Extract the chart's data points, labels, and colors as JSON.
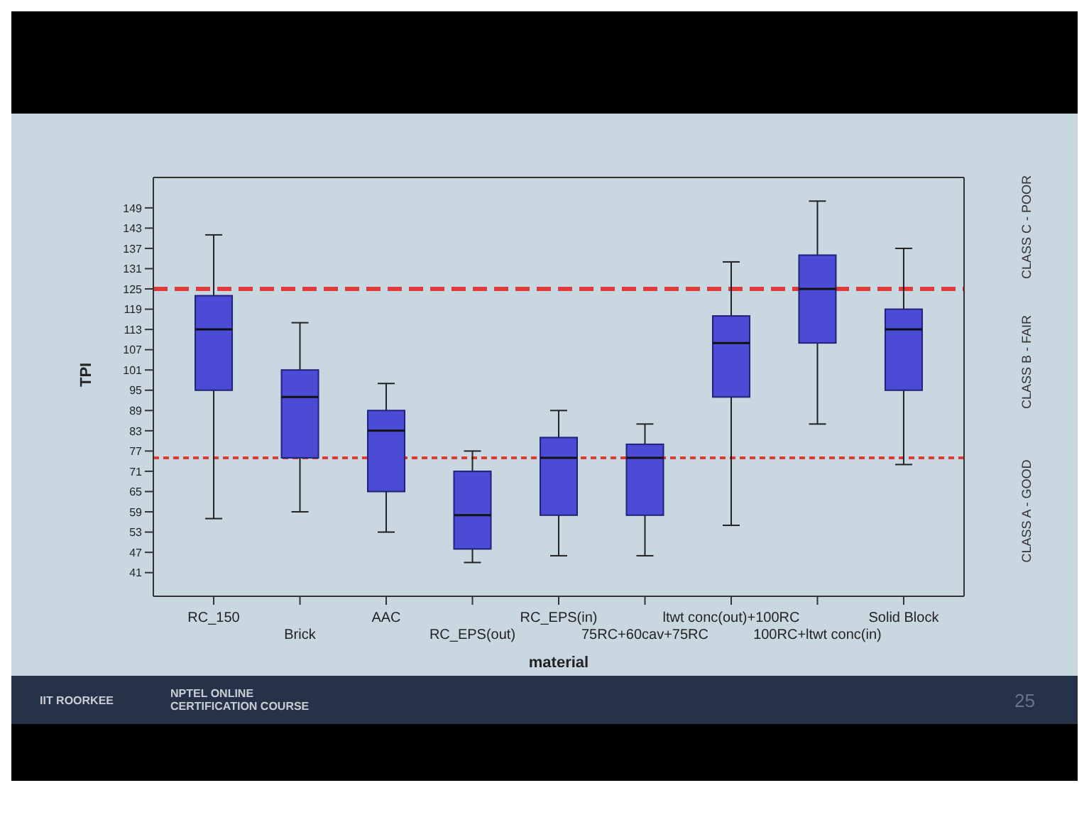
{
  "chart_data": {
    "type": "box",
    "xlabel": "material",
    "ylabel": "TPI",
    "categories": [
      "RC_150",
      "Brick",
      "AAC",
      "RC_EPS(out)",
      "RC_EPS(in)",
      "75RC+60cav+75RC",
      "ltwt conc(out)+100RC",
      "100RC+ltwt conc(in)",
      "Solid Block"
    ],
    "boxes": [
      {
        "low": 57,
        "q1": 95,
        "median": 113,
        "q3": 123,
        "high": 141
      },
      {
        "low": 59,
        "q1": 75,
        "median": 93,
        "q3": 101,
        "high": 115
      },
      {
        "low": 53,
        "q1": 65,
        "median": 83,
        "q3": 89,
        "high": 97
      },
      {
        "low": 44,
        "q1": 48,
        "median": 58,
        "q3": 71,
        "high": 77
      },
      {
        "low": 46,
        "q1": 58,
        "median": 75,
        "q3": 81,
        "high": 89
      },
      {
        "low": 46,
        "q1": 58,
        "median": 75,
        "q3": 79,
        "high": 85
      },
      {
        "low": 55,
        "q1": 93,
        "median": 109,
        "q3": 117,
        "high": 133
      },
      {
        "low": 85,
        "q1": 109,
        "median": 125,
        "q3": 135,
        "high": 151
      },
      {
        "low": 73,
        "q1": 95,
        "median": 113,
        "q3": 119,
        "high": 137
      }
    ],
    "color": "#4b4bd6",
    "ylim": [
      34,
      158
    ],
    "yticks": [
      41,
      47,
      53,
      59,
      65,
      71,
      77,
      83,
      89,
      95,
      101,
      107,
      113,
      119,
      125,
      131,
      137,
      143,
      149
    ],
    "ref_lines": [
      {
        "axis": "y",
        "value": 125,
        "color": "#e03a3a",
        "line_style": "dashed"
      },
      {
        "axis": "y",
        "value": 75,
        "color": "#e03a3a",
        "line_style": "dotted"
      }
    ],
    "annotations": [
      "CLASS C - POOR",
      "CLASS B - FAIR",
      "CLASS A - GOOD",
      "IIT ROORKEE",
      "NPTEL ONLINE CERTIFICATION COURSE",
      "25"
    ]
  }
}
